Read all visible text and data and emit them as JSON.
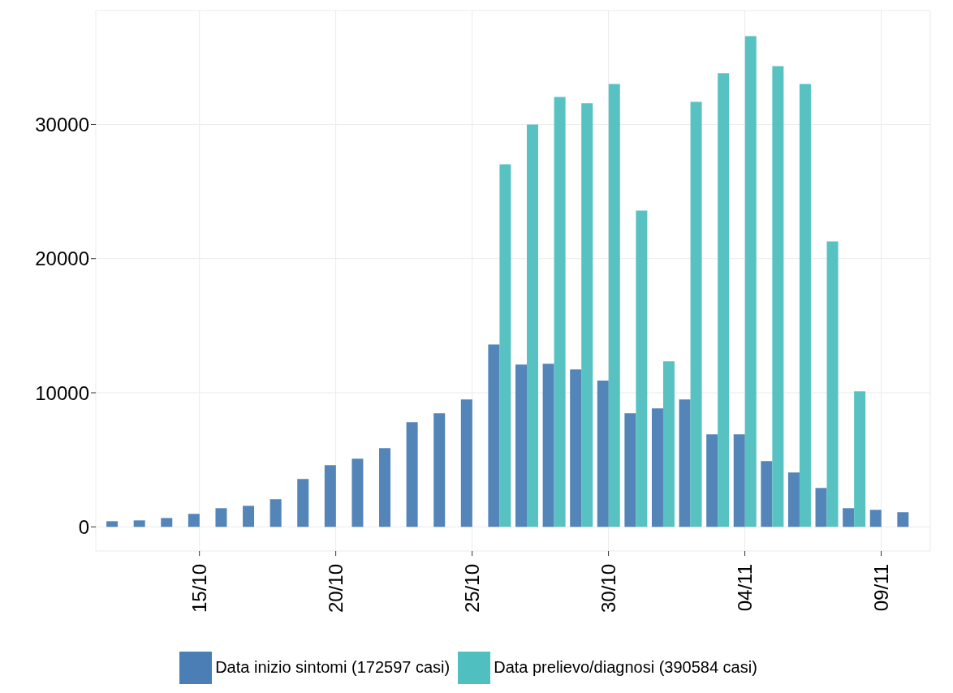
{
  "chart_data": {
    "type": "bar",
    "categories": [
      null,
      null,
      null,
      "15/10",
      null,
      null,
      null,
      null,
      "20/10",
      null,
      null,
      null,
      null,
      "25/10",
      null,
      null,
      null,
      null,
      "30/10",
      null,
      null,
      null,
      null,
      "04/11",
      null,
      null,
      null,
      null,
      "09/11",
      null
    ],
    "series": [
      {
        "name": "Data inizio sintomi (172597 casi)",
        "color": "#4a7eb5",
        "values": [
          420,
          480,
          660,
          970,
          1390,
          1570,
          2060,
          3570,
          4600,
          5080,
          5870,
          7800,
          8470,
          9500,
          13600,
          12100,
          12160,
          11740,
          10900,
          8470,
          8830,
          9500,
          6900,
          6900,
          4900,
          4050,
          2900,
          1390,
          1270,
          1090
        ]
      },
      {
        "name": "Data prelievo/diagnosi (390584 casi)",
        "color": "#4fbfbf",
        "values": [
          null,
          null,
          null,
          null,
          null,
          null,
          null,
          null,
          null,
          null,
          null,
          null,
          null,
          null,
          27040,
          30000,
          32060,
          31580,
          33030,
          23590,
          12340,
          31700,
          33820,
          36600,
          34360,
          33030,
          21290,
          10100,
          null,
          null
        ]
      }
    ],
    "ylim": [
      -1800,
      38500
    ],
    "yticks": [
      0,
      10000,
      20000,
      30000
    ],
    "grid": true,
    "legend": "bottom"
  }
}
